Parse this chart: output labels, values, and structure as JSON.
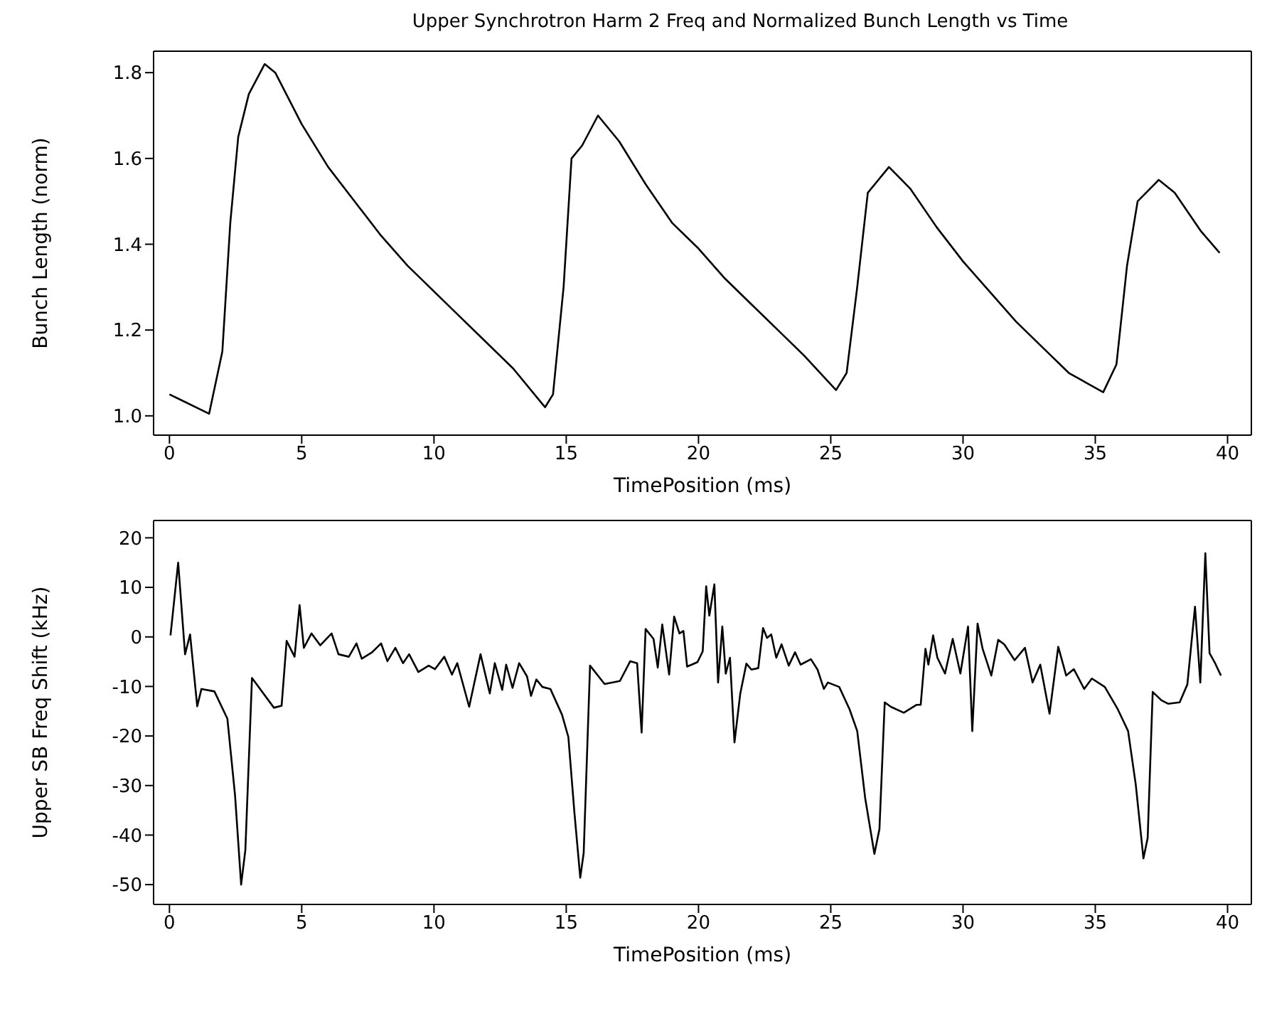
{
  "chart_data": [
    {
      "type": "line",
      "title": "Upper Synchrotron Harm 2 Freq and Normalized Bunch Length vs Time",
      "xlabel": "TimePosition (ms)",
      "ylabel": "Bunch Length (norm)",
      "xlim": [
        -0.6,
        40.9
      ],
      "ylim": [
        0.955,
        1.85
      ],
      "xticks": [
        0,
        5,
        10,
        15,
        20,
        25,
        30,
        35,
        40
      ],
      "yticks": [
        {
          "value": 1.0,
          "label": "1.0"
        },
        {
          "value": 1.2,
          "label": "1.2"
        },
        {
          "value": 1.4,
          "label": "1.4"
        },
        {
          "value": 1.6,
          "label": "1.6"
        },
        {
          "value": 1.8,
          "label": "1.8"
        }
      ],
      "marker": "none",
      "line_style": "solid",
      "series": [
        {
          "color": "#000000",
          "x": [
            0,
            1.5,
            2.0,
            2.3,
            2.6,
            3.0,
            3.6,
            4.0,
            5,
            6,
            7,
            8,
            9,
            10,
            11,
            12,
            13,
            14.2,
            14.5,
            14.9,
            15.2,
            15.6,
            16.2,
            17,
            18,
            19,
            20,
            21,
            22,
            23,
            24,
            25.2,
            25.6,
            26,
            26.4,
            27.2,
            28,
            29,
            30,
            31,
            32,
            33,
            34,
            35.3,
            35.8,
            36.2,
            36.6,
            37.4,
            38,
            39,
            39.7
          ],
          "values": [
            1.05,
            1.005,
            1.15,
            1.45,
            1.65,
            1.75,
            1.82,
            1.8,
            1.68,
            1.58,
            1.5,
            1.42,
            1.35,
            1.29,
            1.23,
            1.17,
            1.11,
            1.02,
            1.05,
            1.3,
            1.6,
            1.63,
            1.7,
            1.64,
            1.54,
            1.45,
            1.39,
            1.32,
            1.26,
            1.2,
            1.14,
            1.06,
            1.1,
            1.3,
            1.52,
            1.58,
            1.53,
            1.44,
            1.36,
            1.29,
            1.22,
            1.16,
            1.1,
            1.055,
            1.12,
            1.35,
            1.5,
            1.55,
            1.52,
            1.43,
            1.38
          ]
        }
      ]
    },
    {
      "type": "line",
      "xlabel": "TimePosition (ms)",
      "ylabel": "Upper SB Freq Shift (kHz)",
      "xlim": [
        -0.6,
        40.9
      ],
      "ylim": [
        -54,
        23.5
      ],
      "xticks": [
        0,
        5,
        10,
        15,
        20,
        25,
        30,
        35,
        40
      ],
      "yticks": [
        -50,
        -40,
        -30,
        -20,
        -10,
        0,
        10,
        20
      ],
      "marker": "none",
      "line_style": "solid",
      "series": [
        {
          "color": "#000000",
          "x": [
            0.04,
            0.33,
            0.59,
            0.78,
            1.05,
            1.21,
            1.7,
            2.19,
            2.48,
            2.71,
            2.87,
            3.12,
            3.95,
            4.24,
            4.43,
            4.73,
            4.92,
            5.08,
            5.37,
            5.7,
            6.13,
            6.39,
            6.78,
            7.07,
            7.27,
            7.66,
            8.0,
            8.24,
            8.54,
            8.83,
            9.06,
            9.41,
            9.8,
            10.04,
            10.39,
            10.68,
            10.88,
            11.33,
            11.76,
            12.11,
            12.3,
            12.58,
            12.73,
            12.97,
            13.22,
            13.52,
            13.67,
            13.87,
            14.1,
            14.4,
            14.84,
            15.08,
            15.31,
            15.53,
            15.66,
            15.9,
            16.45,
            17.03,
            17.42,
            17.68,
            17.85,
            18.0,
            18.3,
            18.46,
            18.63,
            18.89,
            19.08,
            19.28,
            19.43,
            19.57,
            19.96,
            20.16,
            20.29,
            20.41,
            20.6,
            20.74,
            20.9,
            21.03,
            21.19,
            21.36,
            21.58,
            21.81,
            22.0,
            22.26,
            22.44,
            22.59,
            22.75,
            22.94,
            23.14,
            23.41,
            23.65,
            23.86,
            24.25,
            24.5,
            24.74,
            24.89,
            25.32,
            25.71,
            26.0,
            26.3,
            26.65,
            26.84,
            27.04,
            27.27,
            27.76,
            28.25,
            28.4,
            28.58,
            28.69,
            28.87,
            29.03,
            29.32,
            29.61,
            29.9,
            30.19,
            30.35,
            30.55,
            30.74,
            31.07,
            31.33,
            31.56,
            31.95,
            32.34,
            32.63,
            32.92,
            33.27,
            33.6,
            33.9,
            34.19,
            34.58,
            34.87,
            35.36,
            35.85,
            36.24,
            36.53,
            36.82,
            36.98,
            37.17,
            37.5,
            37.76,
            38.19,
            38.48,
            38.77,
            38.97,
            39.16,
            39.32,
            39.51,
            39.75
          ],
          "values": [
            0.3,
            15,
            -3.5,
            0.5,
            -14,
            -10.5,
            -11,
            -16.5,
            -32,
            -50,
            -43,
            -8.3,
            -14.3,
            -13.9,
            -0.8,
            -4,
            6.4,
            -2.2,
            0.7,
            -1.7,
            0.7,
            -3.5,
            -4,
            -1.3,
            -4.4,
            -3.1,
            -1.3,
            -4.9,
            -2.2,
            -5.3,
            -3.5,
            -7.1,
            -5.8,
            -6.5,
            -4,
            -7.6,
            -5.3,
            -14.1,
            -3.5,
            -11.4,
            -5.3,
            -10.7,
            -5.6,
            -10.3,
            -5.3,
            -8,
            -11.9,
            -8.6,
            -10.1,
            -10.5,
            -15.7,
            -20.2,
            -35.5,
            -48.6,
            -43.6,
            -5.8,
            -9.5,
            -8.9,
            -4.9,
            -5.3,
            -19.3,
            1.6,
            -0.4,
            -6.2,
            2.5,
            -7.6,
            4.1,
            0.7,
            1.2,
            -6,
            -5.1,
            -2.9,
            10.2,
            4.3,
            10.6,
            -9.2,
            2.1,
            -7.4,
            -4.2,
            -21.3,
            -11.4,
            -5.4,
            -6.6,
            -6.3,
            1.8,
            -0.2,
            0.5,
            -4.2,
            -1.5,
            -5.8,
            -3.1,
            -5.6,
            -4.5,
            -6.6,
            -10.5,
            -9.2,
            -10.1,
            -14.6,
            -19,
            -32.5,
            -43.8,
            -38.8,
            -13.2,
            -14.1,
            -15.3,
            -13.7,
            -13.7,
            -2.4,
            -5.6,
            0.3,
            -4.2,
            -7.4,
            -0.4,
            -7.4,
            2.1,
            -19,
            2.7,
            -2.4,
            -7.8,
            -0.6,
            -1.5,
            -4.7,
            -2.2,
            -9.2,
            -5.6,
            -15.5,
            -2,
            -7.8,
            -6.5,
            -10.5,
            -8.4,
            -10.1,
            -14.6,
            -19,
            -29.8,
            -44.7,
            -40.6,
            -11.1,
            -12.8,
            -13.5,
            -13.2,
            -9.6,
            6.1,
            -9.2,
            16.9,
            -3.3,
            -5.1,
            -7.8
          ]
        }
      ]
    }
  ]
}
